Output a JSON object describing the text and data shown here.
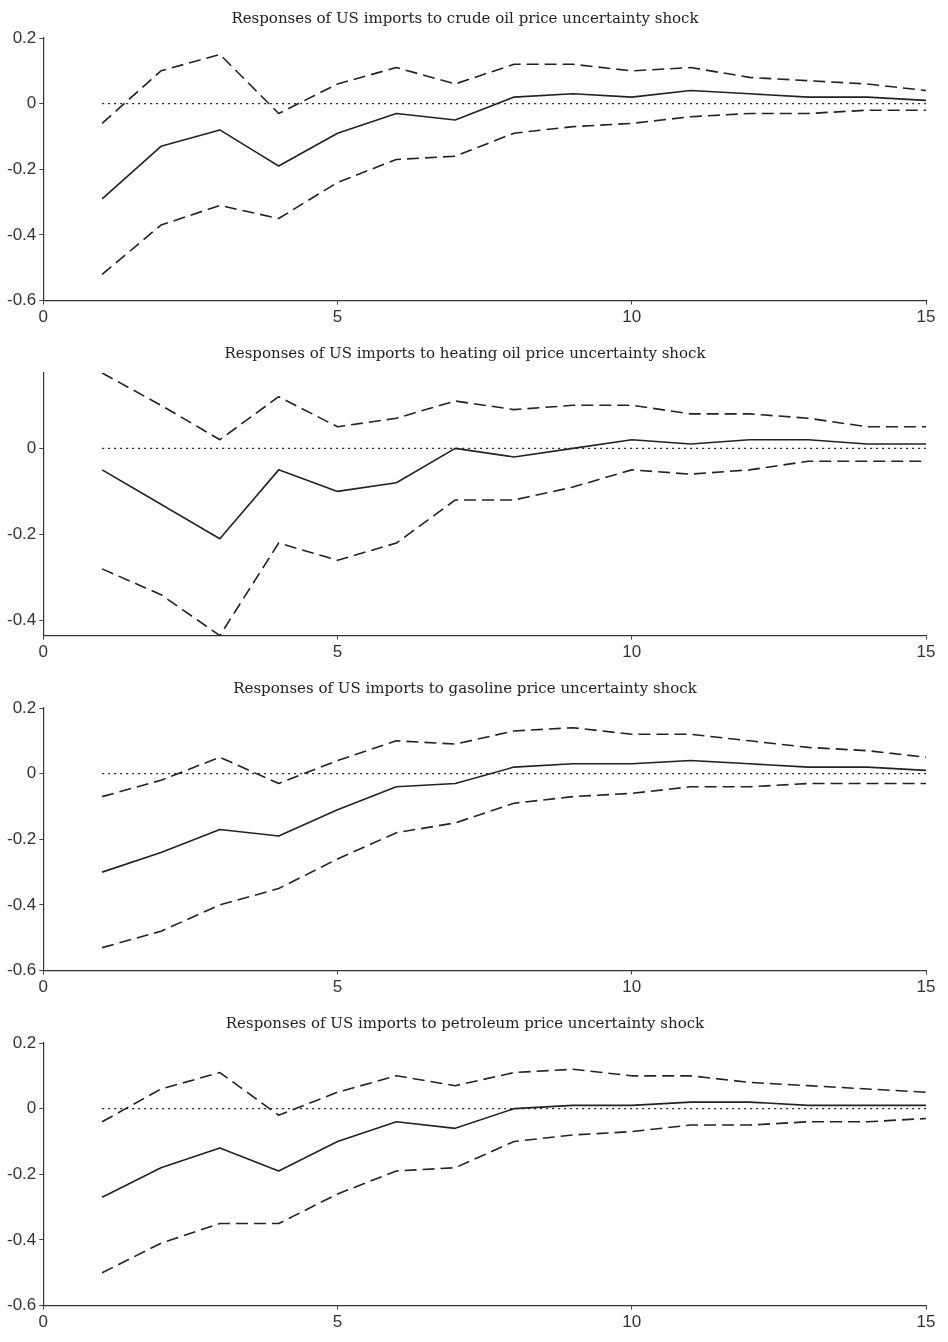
{
  "chart_data": [
    {
      "type": "line",
      "title": "Responses of US imports to crude oil price uncertainty shock",
      "x": [
        1,
        2,
        3,
        4,
        5,
        6,
        7,
        8,
        9,
        10,
        11,
        12,
        13,
        14,
        15
      ],
      "xlim": [
        0,
        15
      ],
      "xticks": [
        0,
        5,
        10,
        15
      ],
      "ylim": [
        -0.6,
        0.2
      ],
      "yticks": [
        -0.6,
        -0.4,
        -0.2,
        0,
        0.2
      ],
      "grid": false,
      "legend": false,
      "marker": "none",
      "series": [
        {
          "color": "#222222",
          "line_style": "solid",
          "values": [
            -0.29,
            -0.13,
            -0.08,
            -0.19,
            -0.09,
            -0.03,
            -0.05,
            0.02,
            0.03,
            0.02,
            0.04,
            0.03,
            0.02,
            0.02,
            0.01
          ]
        },
        {
          "color": "#222222",
          "line_style": "dashed",
          "values": [
            -0.06,
            0.1,
            0.15,
            -0.03,
            0.06,
            0.11,
            0.06,
            0.12,
            0.12,
            0.1,
            0.11,
            0.08,
            0.07,
            0.06,
            0.04
          ]
        },
        {
          "color": "#222222",
          "line_style": "dashed",
          "values": [
            -0.52,
            -0.37,
            -0.31,
            -0.35,
            -0.24,
            -0.17,
            -0.16,
            -0.09,
            -0.07,
            -0.06,
            -0.04,
            -0.03,
            -0.03,
            -0.02,
            -0.02
          ]
        },
        {
          "color": "#222222",
          "line_style": "dotted",
          "values": [
            0,
            0,
            0,
            0,
            0,
            0,
            0,
            0,
            0,
            0,
            0,
            0,
            0,
            0,
            0
          ]
        }
      ]
    },
    {
      "type": "line",
      "title": "Responses of US imports to heating oil price uncertainty shock",
      "x": [
        1,
        2,
        3,
        4,
        5,
        6,
        7,
        8,
        9,
        10,
        11,
        12,
        13,
        14,
        15
      ],
      "xlim": [
        0,
        15
      ],
      "xticks": [
        0,
        5,
        10,
        15
      ],
      "ylim": [
        -0.435,
        0.175
      ],
      "yticks": [
        -0.4,
        -0.2,
        0
      ],
      "grid": false,
      "legend": false,
      "marker": "none",
      "series": [
        {
          "color": "#222222",
          "line_style": "solid",
          "values": [
            -0.05,
            -0.13,
            -0.21,
            -0.05,
            -0.1,
            -0.08,
            0,
            -0.02,
            0,
            0.02,
            0.01,
            0.02,
            0.02,
            0.01,
            0.01
          ]
        },
        {
          "color": "#222222",
          "line_style": "dashed",
          "values": [
            0.175,
            0.1,
            0.02,
            0.12,
            0.05,
            0.07,
            0.11,
            0.09,
            0.1,
            0.1,
            0.08,
            0.08,
            0.07,
            0.05,
            0.05
          ]
        },
        {
          "color": "#222222",
          "line_style": "dashed",
          "values": [
            -0.28,
            -0.34,
            -0.435,
            -0.22,
            -0.26,
            -0.22,
            -0.12,
            -0.12,
            -0.09,
            -0.05,
            -0.06,
            -0.05,
            -0.03,
            -0.03,
            -0.03
          ]
        },
        {
          "color": "#222222",
          "line_style": "dotted",
          "values": [
            0,
            0,
            0,
            0,
            0,
            0,
            0,
            0,
            0,
            0,
            0,
            0,
            0,
            0,
            0
          ]
        }
      ]
    },
    {
      "type": "line",
      "title": "Responses of US imports to gasoline price uncertainty shock",
      "x": [
        1,
        2,
        3,
        4,
        5,
        6,
        7,
        8,
        9,
        10,
        11,
        12,
        13,
        14,
        15
      ],
      "xlim": [
        0,
        15
      ],
      "xticks": [
        0,
        5,
        10,
        15
      ],
      "ylim": [
        -0.6,
        0.2
      ],
      "yticks": [
        -0.6,
        -0.4,
        -0.2,
        0,
        0.2
      ],
      "grid": false,
      "legend": false,
      "marker": "none",
      "series": [
        {
          "color": "#222222",
          "line_style": "solid",
          "values": [
            -0.3,
            -0.24,
            -0.17,
            -0.19,
            -0.11,
            -0.04,
            -0.03,
            0.02,
            0.03,
            0.03,
            0.04,
            0.03,
            0.02,
            0.02,
            0.01
          ]
        },
        {
          "color": "#222222",
          "line_style": "dashed",
          "values": [
            -0.07,
            -0.02,
            0.05,
            -0.03,
            0.04,
            0.1,
            0.09,
            0.13,
            0.14,
            0.12,
            0.12,
            0.1,
            0.08,
            0.07,
            0.05
          ]
        },
        {
          "color": "#222222",
          "line_style": "dashed",
          "values": [
            -0.53,
            -0.48,
            -0.4,
            -0.35,
            -0.26,
            -0.18,
            -0.15,
            -0.09,
            -0.07,
            -0.06,
            -0.04,
            -0.04,
            -0.03,
            -0.03,
            -0.03
          ]
        },
        {
          "color": "#222222",
          "line_style": "dotted",
          "values": [
            0,
            0,
            0,
            0,
            0,
            0,
            0,
            0,
            0,
            0,
            0,
            0,
            0,
            0,
            0
          ]
        }
      ]
    },
    {
      "type": "line",
      "title": "Responses of US imports to petroleum price uncertainty shock",
      "x": [
        1,
        2,
        3,
        4,
        5,
        6,
        7,
        8,
        9,
        10,
        11,
        12,
        13,
        14,
        15
      ],
      "xlim": [
        0,
        15
      ],
      "xticks": [
        0,
        5,
        10,
        15
      ],
      "ylim": [
        -0.6,
        0.2
      ],
      "yticks": [
        -0.6,
        -0.4,
        -0.2,
        0,
        0.2
      ],
      "grid": false,
      "legend": false,
      "marker": "none",
      "series": [
        {
          "color": "#222222",
          "line_style": "solid",
          "values": [
            -0.27,
            -0.18,
            -0.12,
            -0.19,
            -0.1,
            -0.04,
            -0.06,
            0,
            0.01,
            0.01,
            0.02,
            0.02,
            0.01,
            0.01,
            0.01
          ]
        },
        {
          "color": "#222222",
          "line_style": "dashed",
          "values": [
            -0.04,
            0.06,
            0.11,
            -0.02,
            0.05,
            0.1,
            0.07,
            0.11,
            0.12,
            0.1,
            0.1,
            0.08,
            0.07,
            0.06,
            0.05
          ]
        },
        {
          "color": "#222222",
          "line_style": "dashed",
          "values": [
            -0.5,
            -0.41,
            -0.35,
            -0.35,
            -0.26,
            -0.19,
            -0.18,
            -0.1,
            -0.08,
            -0.07,
            -0.05,
            -0.05,
            -0.04,
            -0.04,
            -0.03
          ]
        },
        {
          "color": "#222222",
          "line_style": "dotted",
          "values": [
            0,
            0,
            0,
            0,
            0,
            0,
            0,
            0,
            0,
            0,
            0,
            0,
            0,
            0,
            0
          ]
        }
      ]
    }
  ]
}
